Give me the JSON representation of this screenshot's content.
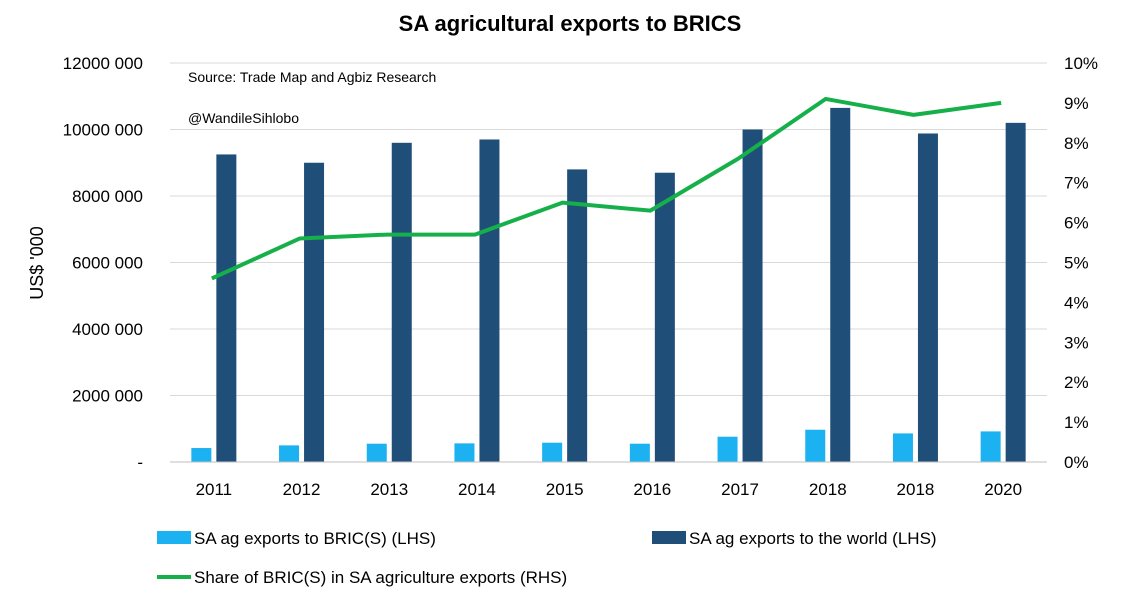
{
  "chart_data": {
    "type": "bar",
    "title": "SA agricultural exports to BRICS",
    "annotations": [
      "Source: Trade Map and Agbiz Research",
      "@WandileSihlobo"
    ],
    "ylabel_left": "US$ '000",
    "ylabel_right": "",
    "categories": [
      "2011",
      "2012",
      "2013",
      "2014",
      "2015",
      "2016",
      "2017",
      "2018",
      "2018",
      "2020"
    ],
    "left_axis": {
      "ylim": [
        0,
        12000000
      ],
      "ticks": [
        {
          "value": 0,
          "label": "-"
        },
        {
          "value": 2000000,
          "label": "2000 000"
        },
        {
          "value": 4000000,
          "label": "4000 000"
        },
        {
          "value": 6000000,
          "label": "6000 000"
        },
        {
          "value": 8000000,
          "label": "8000 000"
        },
        {
          "value": 10000000,
          "label": "10000 000"
        },
        {
          "value": 12000000,
          "label": "12000 000"
        }
      ]
    },
    "right_axis": {
      "ylim": [
        0,
        10
      ],
      "ticks": [
        "0%",
        "1%",
        "2%",
        "3%",
        "4%",
        "5%",
        "6%",
        "7%",
        "8%",
        "9%",
        "10%"
      ]
    },
    "series": [
      {
        "name": "SA ag exports to BRIC(S) (LHS)",
        "kind": "bar",
        "axis": "left",
        "color": "#1cb1f0",
        "values": [
          420000,
          500000,
          550000,
          560000,
          580000,
          550000,
          760000,
          970000,
          860000,
          920000
        ]
      },
      {
        "name": "SA ag exports to the world (LHS)",
        "kind": "bar",
        "axis": "left",
        "color": "#1f4e79",
        "values": [
          9250000,
          9000000,
          9600000,
          9700000,
          8800000,
          8700000,
          10000000,
          10650000,
          9880000,
          10200000
        ]
      },
      {
        "name": "Share of BRIC(S) in SA agriculture exports (RHS)",
        "kind": "line",
        "axis": "right",
        "color": "#16b04a",
        "values": [
          4.6,
          5.6,
          5.7,
          5.7,
          6.5,
          6.3,
          7.6,
          9.1,
          8.7,
          9.0
        ]
      }
    ],
    "grid": true,
    "legend_position": "bottom"
  }
}
